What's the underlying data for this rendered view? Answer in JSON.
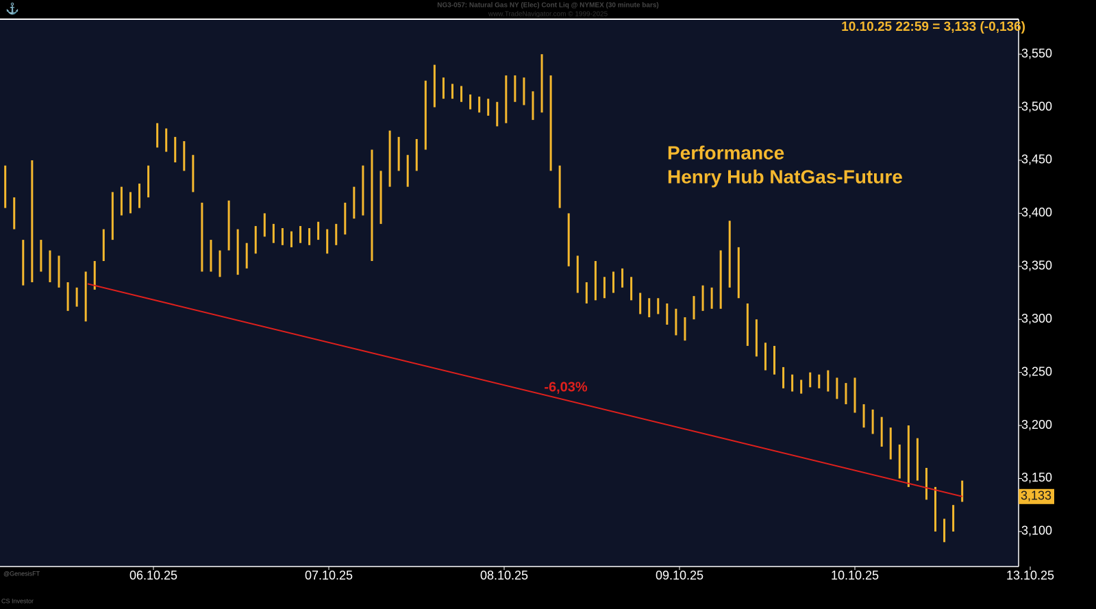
{
  "chart_data": {
    "type": "bar_range",
    "title": "NG3-057: Natural Gas NY (Elec) Cont Liq @ NYMEX (30 minute bars)",
    "subtitle": "www.TradeNavigator.com © 1999-2025",
    "status": "10.10.25 22:59 = 3,133 (-0,136)",
    "annotation": [
      "Performance",
      "Henry Hub NatGas-Future"
    ],
    "footer": [
      "@GenesisFT",
      "CS Investor"
    ],
    "color": "#f5b82e",
    "x": [
      0.03,
      0.081,
      0.132,
      0.183,
      0.234,
      0.285,
      0.336,
      0.387,
      0.438,
      0.489,
      0.54,
      0.591,
      0.642,
      0.693,
      0.744,
      0.795,
      0.846,
      0.897,
      0.948,
      0.999,
      1.05,
      1.101,
      1.152,
      1.203,
      1.254,
      1.305,
      1.356,
      1.407,
      1.458,
      1.509,
      1.56,
      1.611,
      1.662,
      1.713,
      1.764,
      1.815,
      1.866,
      1.917,
      1.968,
      2.019,
      2.07,
      2.121,
      2.172,
      2.223,
      2.274,
      2.325,
      2.376,
      2.427,
      2.478,
      2.529,
      2.58,
      2.631,
      2.682,
      2.733,
      2.784,
      2.835,
      2.886,
      2.937,
      2.988,
      3.039,
      3.09,
      3.141,
      3.192,
      3.243,
      3.294,
      3.345,
      3.396,
      3.447,
      3.498,
      3.549,
      3.6,
      3.651,
      3.702,
      3.753,
      3.804,
      3.855,
      3.906,
      3.957,
      4.008,
      4.059,
      4.11,
      4.161,
      4.212,
      4.263,
      4.314,
      4.365,
      4.416,
      4.467,
      4.518,
      4.569,
      4.62,
      4.671,
      4.722,
      4.773,
      4.824,
      4.875,
      4.926,
      4.977,
      5.028,
      5.079,
      5.13,
      5.181,
      5.232,
      5.283,
      5.334,
      5.385,
      5.436,
      5.487
    ],
    "high": [
      3445,
      3415,
      3375,
      3450,
      3375,
      3365,
      3360,
      3335,
      3330,
      3345,
      3355,
      3385,
      3420,
      3425,
      3420,
      3428,
      3445,
      3485,
      3480,
      3472,
      3468,
      3455,
      3410,
      3375,
      3365,
      3412,
      3385,
      3372,
      3388,
      3400,
      3390,
      3386,
      3383,
      3388,
      3386,
      3392,
      3385,
      3390,
      3410,
      3425,
      3445,
      3460,
      3440,
      3478,
      3472,
      3455,
      3470,
      3525,
      3540,
      3528,
      3522,
      3520,
      3512,
      3510,
      3508,
      3505,
      3530,
      3530,
      3528,
      3515,
      3550,
      3530,
      3445,
      3400,
      3360,
      3335,
      3355,
      3340,
      3345,
      3348,
      3340,
      3325,
      3320,
      3320,
      3315,
      3310,
      3302,
      3322,
      3332,
      3330,
      3365,
      3393,
      3368,
      3315,
      3300,
      3278,
      3275,
      3255,
      3248,
      3243,
      3250,
      3248,
      3252,
      3245,
      3240,
      3245,
      3220,
      3215,
      3208,
      3198,
      3182,
      3200,
      3188,
      3160,
      3142,
      3112,
      3125,
      3148
    ],
    "low": [
      3405,
      3385,
      3332,
      3335,
      3345,
      3335,
      3330,
      3308,
      3312,
      3298,
      3328,
      3355,
      3375,
      3398,
      3400,
      3405,
      3415,
      3462,
      3458,
      3448,
      3440,
      3420,
      3345,
      3345,
      3340,
      3365,
      3342,
      3348,
      3362,
      3378,
      3372,
      3370,
      3368,
      3372,
      3370,
      3375,
      3362,
      3370,
      3380,
      3395,
      3398,
      3355,
      3390,
      3425,
      3440,
      3425,
      3440,
      3460,
      3500,
      3508,
      3508,
      3505,
      3498,
      3495,
      3492,
      3482,
      3485,
      3505,
      3502,
      3488,
      3495,
      3440,
      3405,
      3350,
      3325,
      3315,
      3318,
      3320,
      3325,
      3330,
      3318,
      3305,
      3302,
      3305,
      3295,
      3285,
      3280,
      3300,
      3308,
      3310,
      3310,
      3330,
      3320,
      3275,
      3265,
      3252,
      3248,
      3235,
      3232,
      3230,
      3236,
      3235,
      3232,
      3225,
      3220,
      3212,
      3198,
      3192,
      3180,
      3168,
      3150,
      3142,
      3148,
      3130,
      3100,
      3090,
      3100,
      3128
    ],
    "trend": {
      "color": "#e0201c",
      "x": [
        0.5,
        5.488
      ],
      "values": [
        3333.5,
        3133
      ],
      "label": "-6,03%"
    },
    "last": {
      "value": 3133,
      "label": "3,133"
    },
    "xlim": [
      0,
      5.875
    ],
    "xticks": [
      {
        "value": 0.875,
        "label": "06.10.25"
      },
      {
        "value": 1.875,
        "label": "07.10.25"
      },
      {
        "value": 2.875,
        "label": "08.10.25"
      },
      {
        "value": 3.875,
        "label": "09.10.25"
      },
      {
        "value": 4.875,
        "label": "10.10.25"
      },
      {
        "value": 5.875,
        "label": "13.10.25"
      }
    ],
    "ylim": [
      3067,
      3583
    ],
    "yticks": [
      {
        "value": 3100,
        "label": "3,100"
      },
      {
        "value": 3150,
        "label": "3,150"
      },
      {
        "value": 3200,
        "label": "3,200"
      },
      {
        "value": 3250,
        "label": "3,250"
      },
      {
        "value": 3300,
        "label": "3,300"
      },
      {
        "value": 3350,
        "label": "3,350"
      },
      {
        "value": 3400,
        "label": "3,400"
      },
      {
        "value": 3450,
        "label": "3,450"
      },
      {
        "value": 3500,
        "label": "3,500"
      },
      {
        "value": 3550,
        "label": "3,550"
      }
    ]
  }
}
